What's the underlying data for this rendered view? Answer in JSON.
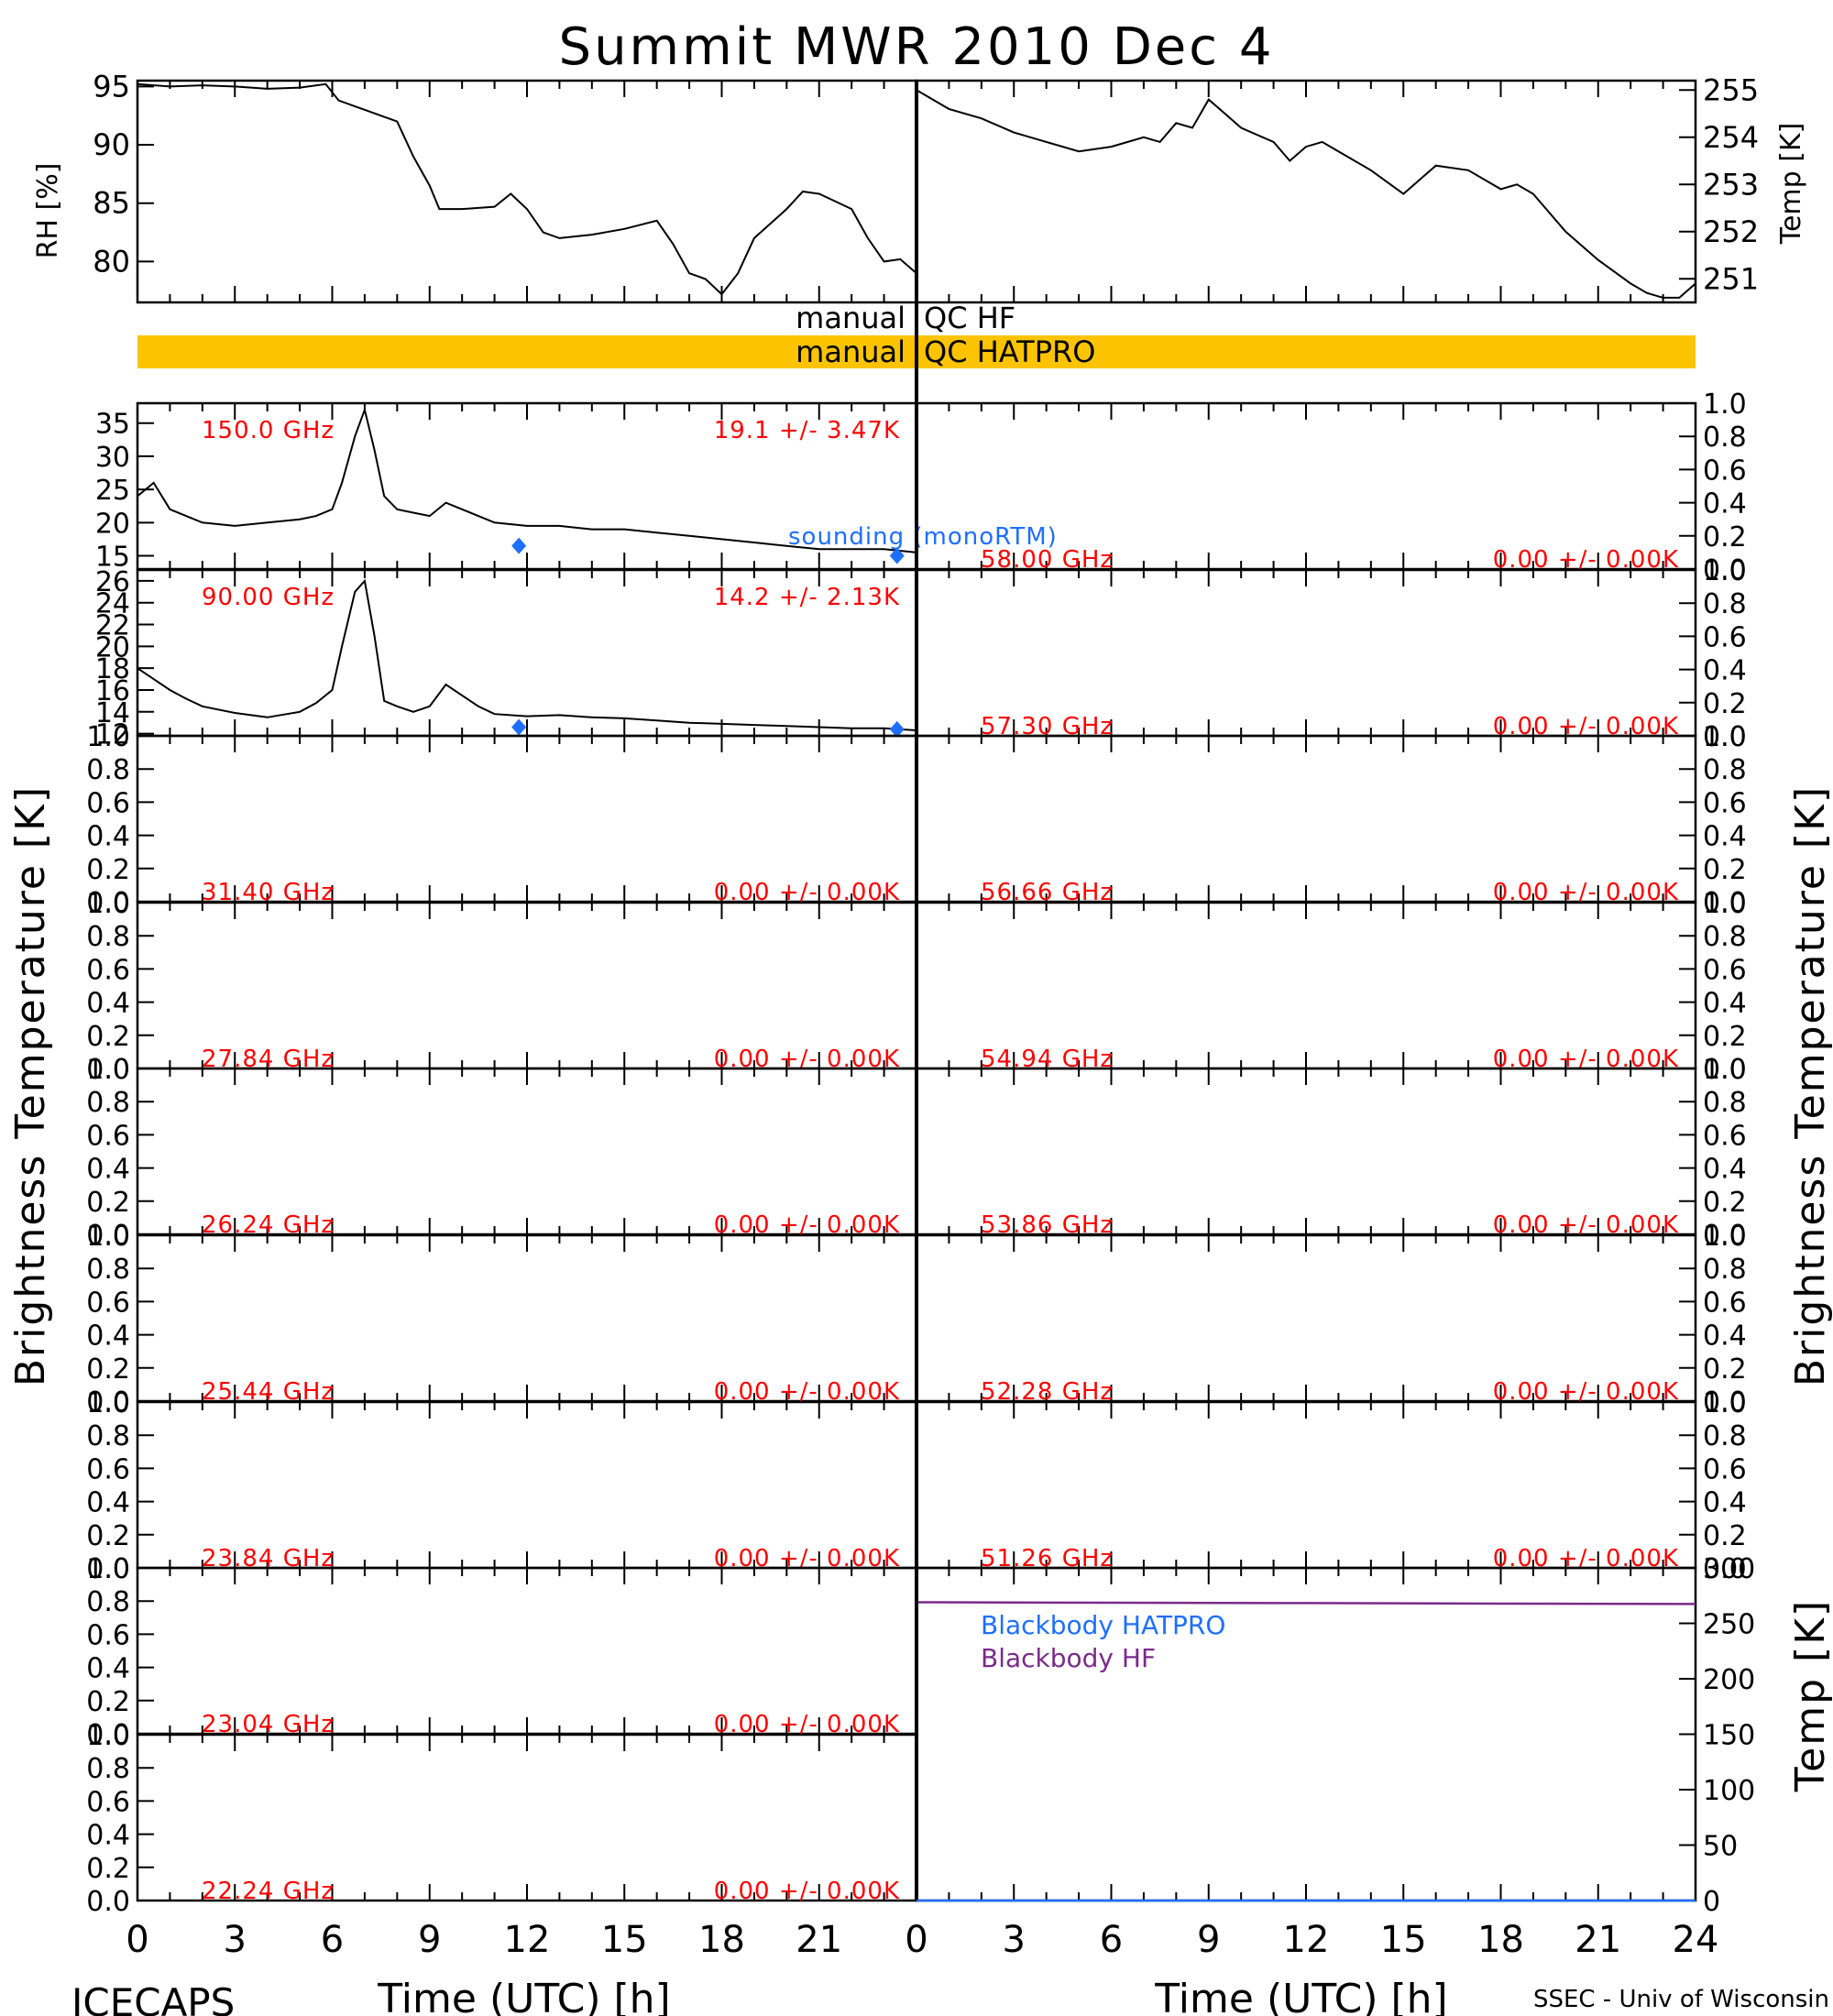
{
  "title": "Summit MWR 2010 Dec  4",
  "footer": {
    "left": "ICECAPS",
    "right": "SSEC - Univ of Wisconsin"
  },
  "axis_labels": {
    "x": "Time (UTC) [h]",
    "left_tb": "Brightness Temperature [K]",
    "right_tb": "Brightness Temperature [K]",
    "rh": "RH [%]",
    "temp": "Temp [K]",
    "bb_temp": "Temp [K]"
  },
  "qc_bars": [
    {
      "left": "manual",
      "right": "QC HF",
      "flagged": false,
      "color": "#ffffff"
    },
    {
      "left": "manual",
      "right": "QC HATPRO",
      "flagged": true,
      "color": "#fcc400"
    }
  ],
  "colors": {
    "line": "#000000",
    "freq_text": "#ff0000",
    "sounding": "#1e6fff",
    "bb_hatpro": "#1e6fff",
    "bb_hf": "#7a2a8a",
    "qc_flag": "#fcc400"
  },
  "chart_data": [
    {
      "type": "line",
      "panel": "rh",
      "ylabel": "RH [%]",
      "xlim": [
        0,
        24
      ],
      "ylim": [
        76.5,
        95.5
      ],
      "yticks": [
        80,
        85,
        90,
        95
      ],
      "xticks": [
        0,
        3,
        6,
        9,
        12,
        15,
        18,
        21
      ],
      "x": [
        0,
        1,
        2,
        3,
        4,
        5,
        5.8,
        6.2,
        7,
        8,
        8.5,
        9,
        9.3,
        10,
        11,
        11.5,
        12,
        12.5,
        13,
        14,
        15,
        16,
        16.5,
        17,
        17.5,
        18,
        18.5,
        19,
        20,
        20.5,
        21,
        22,
        22.5,
        23,
        23.5,
        24
      ],
      "y": [
        95.2,
        95.0,
        95.1,
        95.0,
        94.8,
        94.9,
        95.2,
        93.8,
        93.0,
        92.0,
        89.0,
        86.5,
        84.5,
        84.5,
        84.7,
        85.8,
        84.5,
        82.5,
        82.0,
        82.3,
        82.8,
        83.5,
        81.5,
        79.0,
        78.5,
        77.2,
        79.0,
        82.0,
        84.5,
        86.0,
        85.8,
        84.5,
        82.0,
        80.0,
        80.2,
        79.0
      ]
    },
    {
      "type": "line",
      "panel": "temp",
      "ylabel": "Temp [K]",
      "xlim": [
        0,
        24
      ],
      "ylim": [
        250.5,
        255.2
      ],
      "yticks": [
        251,
        252,
        253,
        254,
        255
      ],
      "x": [
        0,
        0.5,
        1,
        2,
        3,
        4,
        5,
        6,
        7,
        7.5,
        8,
        8.5,
        9,
        9.5,
        10,
        11,
        11.5,
        12,
        12.5,
        13,
        14,
        15,
        15.5,
        16,
        17,
        18,
        18.5,
        19,
        20,
        21,
        22,
        22.5,
        23,
        23.5,
        24
      ],
      "y": [
        255.0,
        254.8,
        254.6,
        254.4,
        254.1,
        253.9,
        253.7,
        253.8,
        254.0,
        253.9,
        254.3,
        254.2,
        254.8,
        254.5,
        254.2,
        253.9,
        253.5,
        253.8,
        253.9,
        253.7,
        253.3,
        252.8,
        253.1,
        253.4,
        253.3,
        252.9,
        253.0,
        252.8,
        252.0,
        251.4,
        250.9,
        250.7,
        250.6,
        250.6,
        250.9
      ]
    },
    {
      "type": "line",
      "panel": "hf-ch-150",
      "label": "150.0 GHz",
      "stats": "19.1 +/-  3.47K",
      "note": "sounding (monoRTM)",
      "xlim": [
        0,
        24
      ],
      "ylim": [
        13,
        38
      ],
      "yticks": [
        15,
        20,
        25,
        30,
        35
      ],
      "x": [
        0,
        0.5,
        1,
        1.5,
        2,
        3,
        4,
        5,
        5.5,
        6,
        6.3,
        6.7,
        7,
        7.3,
        7.6,
        8,
        8.5,
        9,
        9.5,
        10,
        10.5,
        11,
        12,
        13,
        14,
        15,
        16,
        17,
        18,
        19,
        20,
        21,
        22,
        23,
        24
      ],
      "y": [
        24,
        26,
        22,
        21,
        20,
        19.5,
        20,
        20.5,
        21,
        22,
        26,
        33,
        37,
        31,
        24,
        22,
        21.5,
        21,
        23,
        22,
        21,
        20,
        19.5,
        19.5,
        19,
        19,
        18.5,
        18,
        17.5,
        17,
        16.5,
        16,
        16,
        16,
        15.5
      ],
      "sounding_x": [
        11.75,
        23.4
      ],
      "sounding_y": [
        16.5,
        15.0
      ]
    },
    {
      "type": "line",
      "panel": "hf-ch-90",
      "label": "90.00 GHz",
      "stats": "14.2 +/-  2.13K",
      "xlim": [
        0,
        24
      ],
      "ylim": [
        11.8,
        27
      ],
      "yticks": [
        12,
        14,
        16,
        18,
        20,
        22,
        24,
        26
      ],
      "x": [
        0,
        0.5,
        1,
        1.5,
        2,
        3,
        4,
        5,
        5.5,
        6,
        6.3,
        6.7,
        7,
        7.3,
        7.6,
        8,
        8.5,
        9,
        9.5,
        10,
        10.5,
        11,
        12,
        13,
        14,
        15,
        16,
        17,
        18,
        19,
        20,
        21,
        22,
        23,
        24
      ],
      "y": [
        18,
        17,
        16,
        15.2,
        14.5,
        13.9,
        13.5,
        14,
        14.8,
        16,
        20,
        25,
        26,
        21,
        15,
        14.5,
        14,
        14.5,
        16.5,
        15.5,
        14.5,
        13.8,
        13.6,
        13.7,
        13.5,
        13.4,
        13.2,
        13.0,
        12.9,
        12.8,
        12.7,
        12.6,
        12.5,
        12.5,
        12.3
      ],
      "sounding_x": [
        11.75,
        23.4
      ],
      "sounding_y": [
        12.6,
        12.4
      ]
    },
    {
      "type": "line",
      "panel": "hf-ch-58",
      "label": "58.00 GHz",
      "stats": "0.00 +/-  0.00K",
      "xlim": [
        0,
        24
      ],
      "ylim": [
        0,
        1
      ],
      "yticks": [
        0,
        0.2,
        0.4,
        0.6,
        0.8,
        1.0
      ],
      "x": [],
      "y": []
    },
    {
      "type": "line",
      "panel": "hf-ch-5730",
      "label": "57.30 GHz",
      "stats": "0.00 +/-  0.00K",
      "xlim": [
        0,
        24
      ],
      "ylim": [
        0,
        1
      ],
      "yticks": [
        0,
        0.2,
        0.4,
        0.6,
        0.8,
        1.0
      ],
      "x": [],
      "y": []
    },
    {
      "type": "line",
      "panel": "hatpro-ch-3140",
      "label": "31.40 GHz",
      "stats": "0.00 +/-  0.00K",
      "xlim": [
        0,
        24
      ],
      "ylim": [
        0,
        1
      ],
      "yticks": [
        0,
        0.2,
        0.4,
        0.6,
        0.8,
        1.0
      ],
      "x": [],
      "y": []
    },
    {
      "type": "line",
      "panel": "hatpro-ch-5666",
      "label": "56.66 GHz",
      "stats": "0.00 +/-  0.00K",
      "xlim": [
        0,
        24
      ],
      "ylim": [
        0,
        1
      ],
      "yticks": [
        0,
        0.2,
        0.4,
        0.6,
        0.8,
        1.0
      ],
      "x": [],
      "y": []
    },
    {
      "type": "line",
      "panel": "hatpro-ch-2784",
      "label": "27.84 GHz",
      "stats": "0.00 +/-  0.00K",
      "xlim": [
        0,
        24
      ],
      "ylim": [
        0,
        1
      ],
      "yticks": [
        0,
        0.2,
        0.4,
        0.6,
        0.8,
        1.0
      ],
      "x": [],
      "y": []
    },
    {
      "type": "line",
      "panel": "hatpro-ch-5494",
      "label": "54.94 GHz",
      "stats": "0.00 +/-  0.00K",
      "xlim": [
        0,
        24
      ],
      "ylim": [
        0,
        1
      ],
      "yticks": [
        0,
        0.2,
        0.4,
        0.6,
        0.8,
        1.0
      ],
      "x": [],
      "y": []
    },
    {
      "type": "line",
      "panel": "hatpro-ch-2624",
      "label": "26.24 GHz",
      "stats": "0.00 +/-  0.00K",
      "xlim": [
        0,
        24
      ],
      "ylim": [
        0,
        1
      ],
      "yticks": [
        0,
        0.2,
        0.4,
        0.6,
        0.8,
        1.0
      ],
      "x": [],
      "y": []
    },
    {
      "type": "line",
      "panel": "hatpro-ch-5386",
      "label": "53.86 GHz",
      "stats": "0.00 +/-  0.00K",
      "xlim": [
        0,
        24
      ],
      "ylim": [
        0,
        1
      ],
      "yticks": [
        0,
        0.2,
        0.4,
        0.6,
        0.8,
        1.0
      ],
      "x": [],
      "y": []
    },
    {
      "type": "line",
      "panel": "hatpro-ch-2544",
      "label": "25.44 GHz",
      "stats": "0.00 +/-  0.00K",
      "xlim": [
        0,
        24
      ],
      "ylim": [
        0,
        1
      ],
      "yticks": [
        0,
        0.2,
        0.4,
        0.6,
        0.8,
        1.0
      ],
      "x": [],
      "y": []
    },
    {
      "type": "line",
      "panel": "hatpro-ch-5228",
      "label": "52.28 GHz",
      "stats": "0.00 +/-  0.00K",
      "xlim": [
        0,
        24
      ],
      "ylim": [
        0,
        1
      ],
      "yticks": [
        0,
        0.2,
        0.4,
        0.6,
        0.8,
        1.0
      ],
      "x": [],
      "y": []
    },
    {
      "type": "line",
      "panel": "hatpro-ch-2384",
      "label": "23.84 GHz",
      "stats": "0.00 +/-  0.00K",
      "xlim": [
        0,
        24
      ],
      "ylim": [
        0,
        1
      ],
      "yticks": [
        0,
        0.2,
        0.4,
        0.6,
        0.8,
        1.0
      ],
      "x": [],
      "y": []
    },
    {
      "type": "line",
      "panel": "hatpro-ch-5126",
      "label": "51.26 GHz",
      "stats": "0.00 +/-  0.00K",
      "xlim": [
        0,
        24
      ],
      "ylim": [
        0,
        1
      ],
      "yticks": [
        0,
        0.2,
        0.4,
        0.6,
        0.8,
        1.0
      ],
      "x": [],
      "y": []
    },
    {
      "type": "line",
      "panel": "hatpro-ch-2304",
      "label": "23.04 GHz",
      "stats": "0.00 +/-  0.00K",
      "xlim": [
        0,
        24
      ],
      "ylim": [
        0,
        1
      ],
      "yticks": [
        0,
        0.2,
        0.4,
        0.6,
        0.8,
        1.0
      ],
      "x": [],
      "y": []
    },
    {
      "type": "line",
      "panel": "hatpro-ch-2224",
      "label": "22.24 GHz",
      "stats": "0.00 +/-  0.00K",
      "xlim": [
        0,
        24
      ],
      "ylim": [
        0,
        1
      ],
      "yticks": [
        0,
        0.2,
        0.4,
        0.6,
        0.8,
        1.0
      ],
      "x": [],
      "y": []
    },
    {
      "type": "line",
      "panel": "blackbody",
      "ylabel": "Temp [K]",
      "xlim": [
        0,
        24
      ],
      "ylim": [
        0,
        300
      ],
      "yticks": [
        0,
        50,
        100,
        150,
        200,
        250,
        300
      ],
      "xticks": [
        0,
        3,
        6,
        9,
        12,
        15,
        18,
        21,
        24
      ],
      "series": [
        {
          "name": "Blackbody HATPRO",
          "color": "#1e6fff",
          "x": [
            0,
            24
          ],
          "y": [
            0,
            0
          ]
        },
        {
          "name": "Blackbody HF",
          "color": "#7a2a8a",
          "x": [
            0,
            6,
            12,
            18,
            24
          ],
          "y": [
            269,
            268.6,
            268.3,
            267.8,
            267.4
          ]
        }
      ]
    }
  ]
}
